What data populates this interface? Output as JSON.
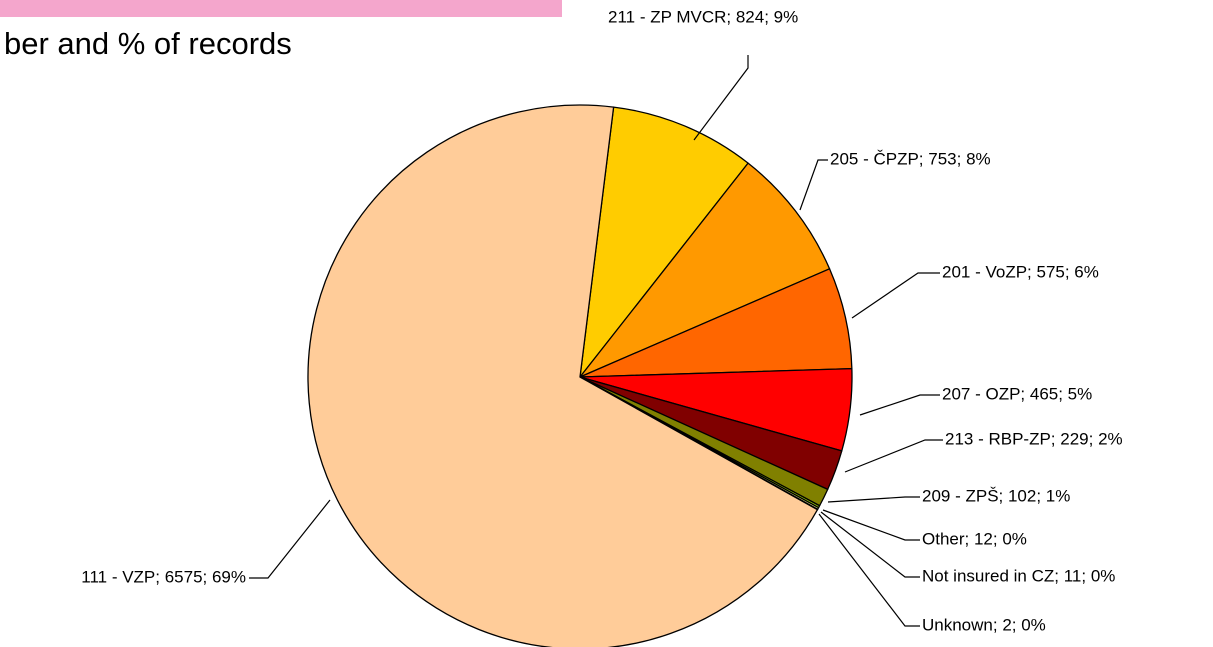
{
  "chart_data": {
    "type": "pie",
    "title": "ber and % of records",
    "values": [
      824,
      753,
      575,
      465,
      229,
      102,
      12,
      11,
      2,
      6575
    ],
    "value_labels": [
      "211 - ZP MVCR; 824; 9%",
      "205 - ČPZP; 753; 8%",
      "201 - VoZP; 575; 6%",
      "207 - OZP; 465; 5%",
      "213 - RBP-ZP; 229; 2%",
      "209 - ZPŠ; 102; 1%",
      "Other; 12; 0%",
      "Not insured in CZ; 11; 0%",
      "Unknown; 2; 0%",
      "111 - VZP; 6575; 69%"
    ],
    "colors": [
      "#ffcc00",
      "#ff9900",
      "#ff6600",
      "#ff0000",
      "#800000",
      "#808000",
      "#99cc00",
      "#ffff99",
      "#cccc00",
      "#ffcc99"
    ]
  }
}
